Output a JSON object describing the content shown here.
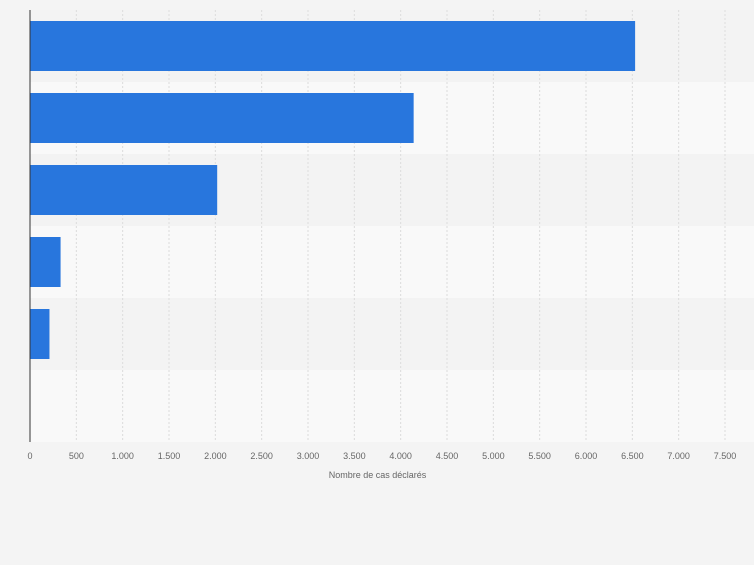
{
  "chart_data": {
    "type": "bar",
    "orientation": "horizontal",
    "categories": [
      "",
      "",
      "",
      "",
      "",
      ""
    ],
    "values": [
      6530,
      4140,
      2020,
      330,
      210,
      0
    ],
    "xlabel": "Nombre de cas déclarés",
    "ylabel": "",
    "xlim": [
      0,
      7500
    ],
    "ticks": [
      0,
      500,
      1000,
      1500,
      2000,
      2500,
      3000,
      3500,
      4000,
      4500,
      5000,
      5500,
      6000,
      6500,
      7000,
      7500
    ],
    "tick_labels": [
      "0",
      "500",
      "1.000",
      "1.500",
      "2.000",
      "2.500",
      "3.000",
      "3.500",
      "4.000",
      "4.500",
      "5.000",
      "5.500",
      "6.000",
      "6.500",
      "7.000",
      "7.500"
    ],
    "grid": true,
    "bar_color": "#2876dd",
    "band_colors": [
      "#f3f3f3",
      "#f9f9f9"
    ]
  }
}
